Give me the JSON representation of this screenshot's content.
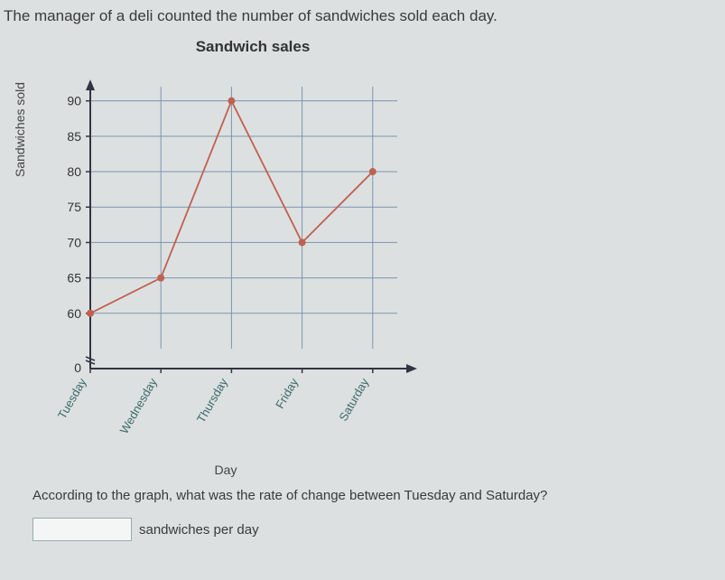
{
  "prompt_text": "The manager of a deli counted the number of sandwiches sold each day.",
  "question_text": "According to the graph, what was the rate of change between Tuesday and Saturday?",
  "answer_unit": "sandwiches per day",
  "chart": {
    "type": "line",
    "title": "Sandwich sales",
    "title_fontsize": 17,
    "xlabel": "Day",
    "ylabel": "Sandwiches sold",
    "label_fontsize": 14,
    "categories": [
      "Tuesday",
      "Wednesday",
      "Thursday",
      "Friday",
      "Saturday"
    ],
    "values": [
      60,
      65,
      90,
      70,
      80
    ],
    "ylim": [
      55,
      92
    ],
    "yticks": [
      60,
      65,
      70,
      75,
      80,
      85,
      90
    ],
    "y_axis_break": true,
    "line_color": "#c06050",
    "marker_color": "#c06050",
    "marker_size": 4,
    "line_width": 1.8,
    "grid_color": "#7a95b0",
    "axis_color": "#333344",
    "background_color": "#dde0e0",
    "tick_label_color": "#333",
    "xtick_label_color": "#3a6a6a",
    "xtick_rotation": -60
  }
}
